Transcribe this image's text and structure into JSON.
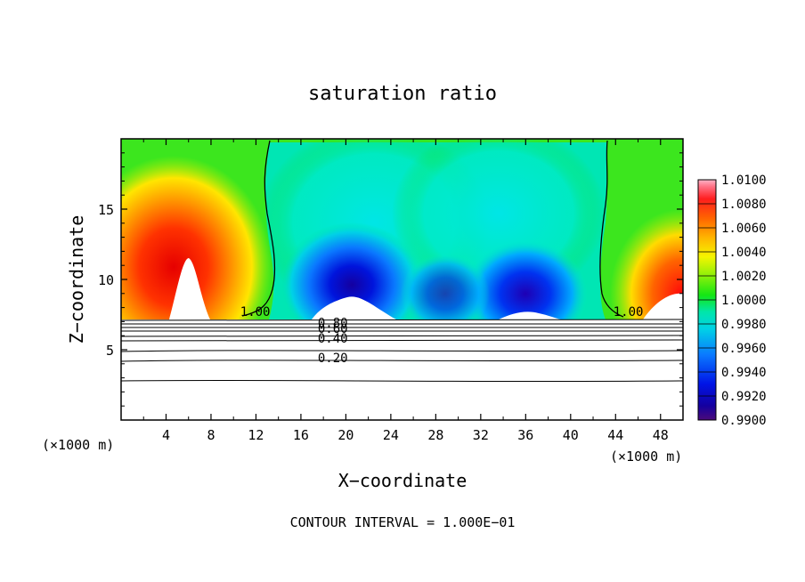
{
  "chart_data": {
    "type": "heatmap",
    "title": "saturation ratio",
    "xlabel": "X−coordinate",
    "ylabel": "Z−coordinate",
    "x_unit_left": "(×1000 m)",
    "x_unit_right": "(×1000 m)",
    "footer": "CONTOUR INTERVAL = 1.000E−01",
    "xlim": [
      0,
      50
    ],
    "ylim": [
      0,
      20
    ],
    "x_ticks": [
      4,
      8,
      12,
      16,
      20,
      24,
      28,
      32,
      36,
      40,
      44,
      48
    ],
    "x_tick_labels": [
      "4",
      "8",
      "12",
      "16",
      "20",
      "24",
      "28",
      "32",
      "36",
      "40",
      "44",
      "48"
    ],
    "y_ticks": [
      5,
      10,
      15
    ],
    "y_tick_labels": [
      "5",
      "10",
      "15"
    ],
    "colorbar": {
      "min": 0.99,
      "max": 1.01,
      "labels": [
        "1.0100",
        "1.0080",
        "1.0060",
        "1.0040",
        "1.0020",
        "1.0000",
        "0.9980",
        "0.9960",
        "0.9940",
        "0.9920",
        "0.9900"
      ]
    },
    "contour_labels": [
      {
        "text": "1.00",
        "x": 10.6,
        "z": 7.4
      },
      {
        "text": "1.00",
        "x": 43.8,
        "z": 7.4
      },
      {
        "text": "0.80",
        "x": 17.5,
        "z": 6.6
      },
      {
        "text": "0.60",
        "x": 17.5,
        "z": 6.2
      },
      {
        "text": "0.40",
        "x": 17.5,
        "z": 5.5
      },
      {
        "text": "0.20",
        "x": 17.5,
        "z": 4.1
      }
    ],
    "cloud_base_z": 7.0,
    "colors": {
      "frame": "#000000",
      "clear": "#ffffff"
    }
  }
}
